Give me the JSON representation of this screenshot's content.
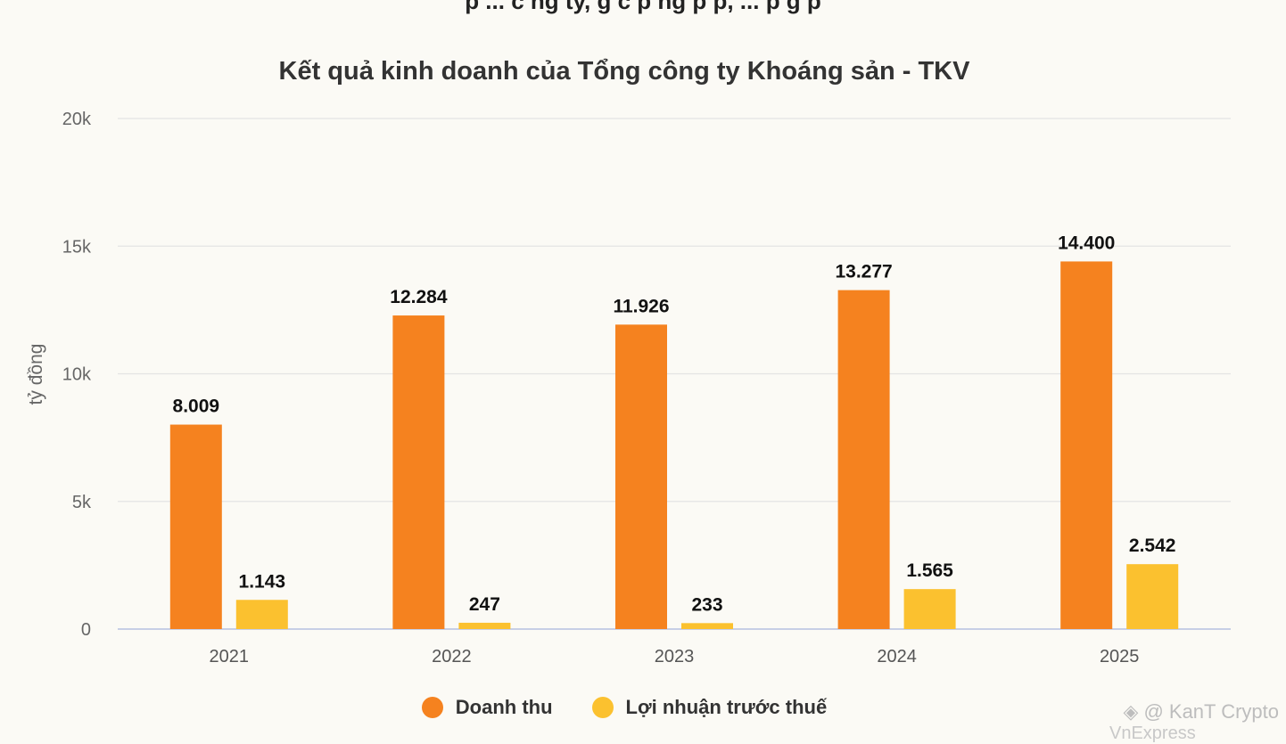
{
  "header": {
    "cut_text": "p  ...  c  ng ty,   g  c  p       ng  p    p,  ...  p    g  p"
  },
  "watermark": {
    "text": "@ KanT Crypto",
    "brand": "VnExpress",
    "icon": "binance-logo-icon"
  },
  "colors": {
    "revenue": "#f5821f",
    "profit": "#fbc12f",
    "grid": "#e4e4e4",
    "axis": "#c7cfe6"
  },
  "chart_data": {
    "type": "bar",
    "title": "Kết quả kinh doanh của Tổng công ty Khoáng sản - TKV",
    "ylabel": "tỷ đồng",
    "categories": [
      "2021",
      "2022",
      "2023",
      "2024",
      "2025"
    ],
    "ylim": [
      0,
      20000
    ],
    "yticks": [
      0,
      5000,
      10000,
      15000,
      20000
    ],
    "ytick_labels": [
      "0",
      "5k",
      "10k",
      "15k",
      "20k"
    ],
    "grid": true,
    "legend_position": "bottom",
    "series": [
      {
        "name": "Doanh thu",
        "values": [
          8009,
          12284,
          11926,
          13277,
          14400
        ],
        "labels": [
          "8.009",
          "12.284",
          "11.926",
          "13.277",
          "14.400"
        ]
      },
      {
        "name": "Lợi nhuận trước thuế",
        "values": [
          1143,
          247,
          233,
          1565,
          2542
        ],
        "labels": [
          "1.143",
          "247",
          "233",
          "1.565",
          "2.542"
        ]
      }
    ]
  }
}
